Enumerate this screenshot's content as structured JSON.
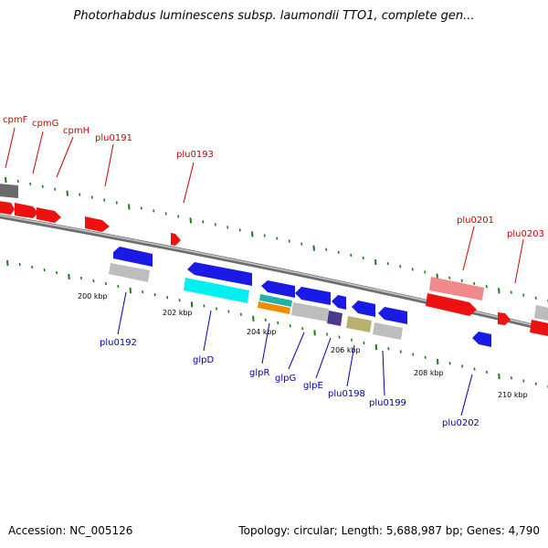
{
  "title": "Photorhabdus luminescens subsp. laumondii TTO1, complete gen...",
  "footer": {
    "accession": "Accession: NC_005126",
    "summary": "Topology: circular; Length: 5,688,987 bp; Genes: 4,790"
  },
  "colors": {
    "backbone": "#8c8c8c",
    "forward_label": "#cc0000",
    "reverse_label": "#0000aa",
    "tick": "#1f7a1f"
  },
  "scale_labels": [
    "200 kbp",
    "202 kbp",
    "204 kbp",
    "206 kbp",
    "208 kbp",
    "210 kbp"
  ],
  "forward_labels": [
    "cpmF",
    "cpmG",
    "cpmH",
    "plu0191",
    "plu0193",
    "plu0201",
    "plu0203"
  ],
  "reverse_labels": [
    "plu0192",
    "glpD",
    "glpR",
    "glpG",
    "glpE",
    "plu0198",
    "plu0199",
    "plu0202"
  ]
}
